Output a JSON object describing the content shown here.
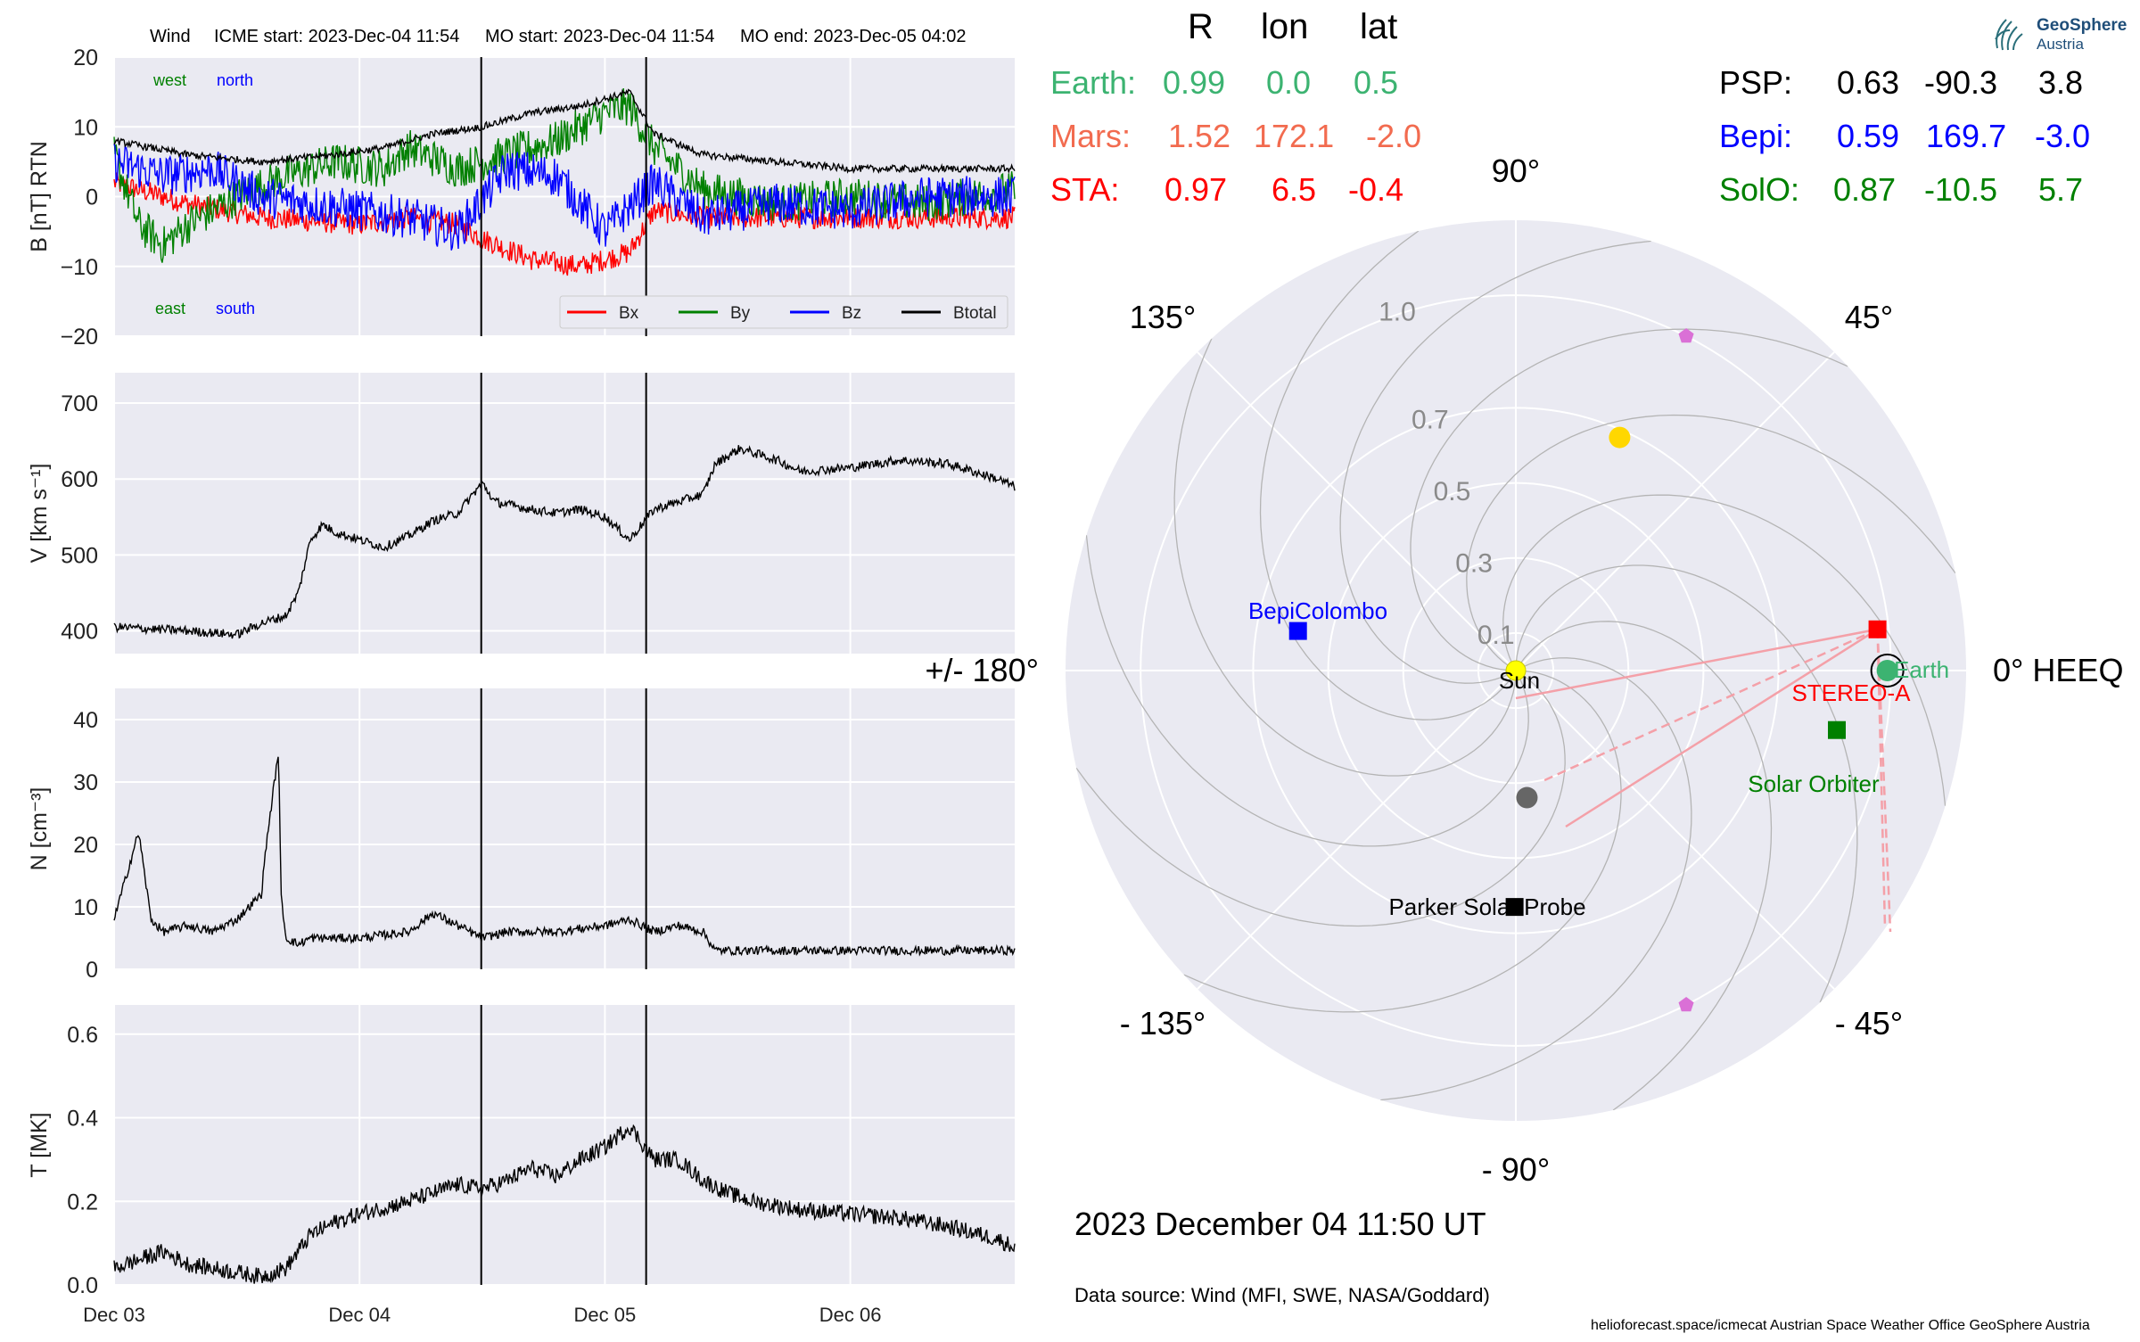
{
  "header": {
    "wind_title": "Wind",
    "icme_start": "ICME start: 2023-Dec-04 11:54",
    "mo_start": "MO start: 2023-Dec-04 11:54",
    "mo_end": "MO end: 2023-Dec-05 04:02"
  },
  "logo": {
    "line1": "GeoSphere",
    "line2": "Austria"
  },
  "positions": {
    "columns": [
      "R",
      "lon",
      "lat"
    ],
    "rows_left": [
      {
        "name": "Earth:",
        "R": "0.99",
        "lon": "0.0",
        "lat": "0.5",
        "color": "#3cb371"
      },
      {
        "name": "Mars:",
        "R": "1.52",
        "lon": "172.1",
        "lat": "-2.0",
        "color": "#f26b4f"
      },
      {
        "name": "STA:",
        "R": "0.97",
        "lon": "6.5",
        "lat": "-0.4",
        "color": "#ff0000"
      }
    ],
    "rows_right": [
      {
        "name": "PSP:",
        "R": "0.63",
        "lon": "-90.3",
        "lat": "3.8",
        "color": "#000000"
      },
      {
        "name": "Bepi:",
        "R": "0.59",
        "lon": "169.7",
        "lat": "-3.0",
        "color": "#0000ff"
      },
      {
        "name": "SolO:",
        "R": "0.87",
        "lon": "-10.5",
        "lat": "5.7",
        "color": "#008000"
      }
    ]
  },
  "date_label": "2023 December 04  11:50 UT",
  "data_source": "Data source: Wind (MFI, SWE, NASA/Goddard)",
  "footer": "helioforecast.space/icmecat   Austrian Space Weather Office   GeoSphere Austria",
  "colors": {
    "bx": "#ff0000",
    "by": "#008000",
    "bz": "#0000ff",
    "btotal": "#000000",
    "panel_bg": "#eaeaf2"
  },
  "chart_data": [
    {
      "type": "line",
      "panel": "magnetic field",
      "ylabel": "B [nT] RTN",
      "ylim": [
        -20,
        20
      ],
      "yticks": [
        -20,
        -10,
        0,
        10,
        20
      ],
      "xticks": [
        "Dec 03",
        "Dec 04",
        "Dec 05",
        "Dec 06"
      ],
      "xrange_days": [
        0,
        3.67
      ],
      "event_lines_days": [
        1.496,
        2.168
      ],
      "annotations": {
        "west": "west",
        "north": "north",
        "east": "east",
        "south": "south"
      },
      "legend": [
        "Bx",
        "By",
        "Bz",
        "Btotal"
      ],
      "legend_position": "lower right",
      "series": [
        {
          "name": "Bx",
          "x": [
            0,
            0.3,
            0.6,
            1.0,
            1.2,
            1.4,
            1.5,
            1.7,
            1.9,
            2.1,
            2.2,
            2.4,
            2.7,
            3.0,
            3.3,
            3.67
          ],
          "y": [
            2,
            -1,
            -3,
            -4,
            -3,
            -4,
            -6,
            -9,
            -10,
            -8,
            -2,
            -3,
            -3,
            -3,
            -3,
            -3
          ]
        },
        {
          "name": "By",
          "x": [
            0,
            0.1,
            0.2,
            0.3,
            0.5,
            0.7,
            0.9,
            1.1,
            1.2,
            1.4,
            1.6,
            1.8,
            2.0,
            2.1,
            2.2,
            2.4,
            2.7,
            3.0,
            3.3,
            3.67
          ],
          "y": [
            6,
            -4,
            -7,
            -4,
            0,
            3,
            5,
            4,
            7,
            4,
            6,
            8,
            12,
            13,
            7,
            1,
            -1,
            0,
            -1,
            1
          ]
        },
        {
          "name": "Bz",
          "x": [
            0,
            0.2,
            0.4,
            0.6,
            0.8,
            1.0,
            1.2,
            1.4,
            1.6,
            1.8,
            2.0,
            2.2,
            2.4,
            2.7,
            3.0,
            3.3,
            3.67
          ],
          "y": [
            5,
            3,
            4,
            0,
            -1,
            -2,
            -3,
            -5,
            4,
            3,
            -5,
            2,
            -3,
            -1,
            -2,
            0,
            0
          ]
        },
        {
          "name": "Btotal",
          "x": [
            0,
            0.3,
            0.6,
            0.9,
            1.1,
            1.3,
            1.5,
            1.7,
            1.9,
            2.0,
            2.1,
            2.2,
            2.4,
            2.7,
            3.0,
            3.3,
            3.67
          ],
          "y": [
            8,
            6,
            5,
            6,
            7,
            9,
            10,
            12,
            13,
            14,
            15,
            9,
            6,
            5,
            4,
            4,
            4
          ]
        }
      ]
    },
    {
      "type": "line",
      "panel": "speed",
      "ylabel": "V [km s⁻¹]",
      "ylim": [
        370,
        740
      ],
      "yticks": [
        400,
        500,
        600,
        700
      ],
      "xrange_days": [
        0,
        3.67
      ],
      "event_lines_days": [
        1.496,
        2.168
      ],
      "series": [
        {
          "name": "V",
          "x": [
            0,
            0.3,
            0.5,
            0.6,
            0.7,
            0.75,
            0.8,
            0.85,
            0.9,
            1.0,
            1.1,
            1.2,
            1.3,
            1.4,
            1.5,
            1.55,
            1.7,
            1.8,
            1.9,
            2.0,
            2.1,
            2.2,
            2.3,
            2.4,
            2.45,
            2.55,
            2.7,
            2.8,
            3.0,
            3.2,
            3.4,
            3.6,
            3.67
          ],
          "y": [
            405,
            400,
            395,
            410,
            420,
            450,
            520,
            540,
            530,
            520,
            510,
            525,
            545,
            555,
            595,
            570,
            560,
            555,
            560,
            550,
            520,
            560,
            570,
            580,
            620,
            640,
            625,
            610,
            615,
            625,
            620,
            600,
            590
          ]
        }
      ]
    },
    {
      "type": "line",
      "panel": "density",
      "ylabel": "N [cm⁻³]",
      "ylim": [
        0,
        45
      ],
      "yticks": [
        0,
        10,
        20,
        30,
        40
      ],
      "xrange_days": [
        0,
        3.67
      ],
      "event_lines_days": [
        1.496,
        2.168
      ],
      "series": [
        {
          "name": "N",
          "x": [
            0,
            0.05,
            0.1,
            0.15,
            0.2,
            0.3,
            0.4,
            0.5,
            0.6,
            0.62,
            0.67,
            0.68,
            0.7,
            0.75,
            0.8,
            1.0,
            1.2,
            1.3,
            1.4,
            1.5,
            1.6,
            1.8,
            2.0,
            2.1,
            2.2,
            2.3,
            2.4,
            2.45,
            2.6,
            3.0,
            3.4,
            3.67
          ],
          "y": [
            8,
            15,
            22,
            8,
            6,
            7,
            6,
            8,
            12,
            20,
            35,
            12,
            5,
            4,
            5,
            5,
            6,
            9,
            7,
            5,
            6,
            6,
            7,
            8,
            6,
            7,
            6,
            3,
            3,
            3,
            3,
            3
          ]
        }
      ]
    },
    {
      "type": "line",
      "panel": "temperature",
      "ylabel": "T [MK]",
      "ylim": [
        0.0,
        0.67
      ],
      "yticks": [
        0.0,
        0.2,
        0.4,
        0.6
      ],
      "xticks": [
        "Dec 03",
        "Dec 04",
        "Dec 05",
        "Dec 06"
      ],
      "xrange_days": [
        0,
        3.67
      ],
      "event_lines_days": [
        1.496,
        2.168
      ],
      "series": [
        {
          "name": "T",
          "x": [
            0,
            0.1,
            0.2,
            0.3,
            0.4,
            0.5,
            0.6,
            0.7,
            0.8,
            0.9,
            1.0,
            1.2,
            1.3,
            1.4,
            1.5,
            1.6,
            1.7,
            1.8,
            1.9,
            2.0,
            2.1,
            2.2,
            2.3,
            2.4,
            2.5,
            2.6,
            2.8,
            3.0,
            3.2,
            3.4,
            3.6,
            3.67
          ],
          "y": [
            0.04,
            0.06,
            0.08,
            0.05,
            0.04,
            0.03,
            0.02,
            0.04,
            0.12,
            0.15,
            0.17,
            0.2,
            0.22,
            0.24,
            0.23,
            0.25,
            0.28,
            0.26,
            0.3,
            0.33,
            0.38,
            0.3,
            0.3,
            0.25,
            0.22,
            0.2,
            0.18,
            0.17,
            0.16,
            0.14,
            0.11,
            0.09
          ]
        }
      ]
    },
    {
      "type": "scatter",
      "panel": "polar positions",
      "rticks": [
        "0.1",
        "0.3",
        "0.5",
        "0.7",
        "1.0"
      ],
      "rtick_values": [
        0.1,
        0.3,
        0.5,
        0.7,
        1.0
      ],
      "rmax": 1.2,
      "angle_labels": [
        {
          "text": "0° HEEQ",
          "deg": 0
        },
        {
          "text": "45°",
          "deg": 45
        },
        {
          "text": "90°",
          "deg": 90
        },
        {
          "text": "135°",
          "deg": 135
        },
        {
          "text": "+/- 180°",
          "deg": 180
        },
        {
          "text": "- 135°",
          "deg": -135
        },
        {
          "text": "- 90°",
          "deg": -90
        },
        {
          "text": "- 45°",
          "deg": -45
        }
      ],
      "bodies": [
        {
          "label": "Sun",
          "r": 0.0,
          "lon": 0.0,
          "marker": "circle",
          "color": "#ffff00"
        },
        {
          "label": "Earth",
          "r": 0.99,
          "lon": 0.0,
          "marker": "circle",
          "color": "#3cb371"
        },
        {
          "label": "STEREO-A",
          "r": 0.97,
          "lon": 6.5,
          "marker": "square",
          "color": "#ff0000"
        },
        {
          "label": "Solar Orbiter",
          "r": 0.87,
          "lon": -10.5,
          "marker": "square",
          "color": "#008000"
        },
        {
          "label": "BepiColombo",
          "r": 0.59,
          "lon": 169.7,
          "marker": "square",
          "color": "#0000ff"
        },
        {
          "label": "Parker Solar Probe",
          "r": 0.63,
          "lon": -90.3,
          "marker": "square",
          "color": "#000000"
        },
        {
          "label": "",
          "r": 0.34,
          "lon": -85.0,
          "marker": "circle",
          "color": "#666666"
        },
        {
          "label": "",
          "r": 0.68,
          "lon": 66.0,
          "marker": "circle",
          "color": "#ffd700"
        },
        {
          "label": "",
          "r": 1.0,
          "lon": 63.0,
          "marker": "pentagon",
          "color": "#da70d6"
        },
        {
          "label": "",
          "r": 1.0,
          "lon": -63.0,
          "marker": "pentagon",
          "color": "#da70d6"
        }
      ]
    }
  ]
}
